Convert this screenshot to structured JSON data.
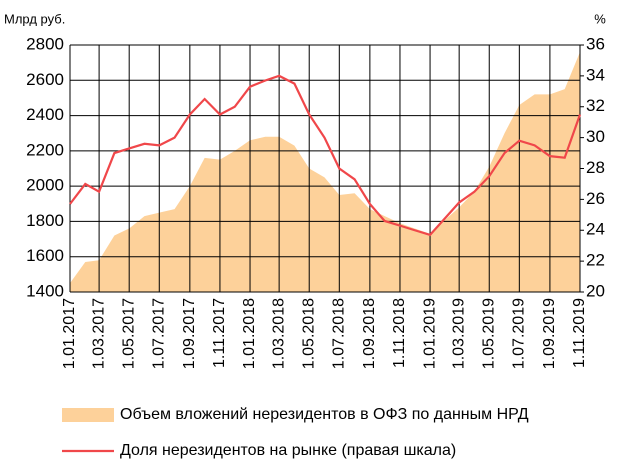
{
  "chart_data": {
    "type": "area",
    "y_axis_label": "Млрд руб.",
    "y2_axis_label": "%",
    "x": [
      "2017-01-01",
      "2017-02-01",
      "2017-03-01",
      "2017-04-01",
      "2017-05-01",
      "2017-06-01",
      "2017-07-01",
      "2017-08-01",
      "2017-09-01",
      "2017-10-01",
      "2017-11-01",
      "2017-12-01",
      "2018-01-01",
      "2018-02-01",
      "2018-03-01",
      "2018-04-01",
      "2018-05-01",
      "2018-06-01",
      "2018-07-01",
      "2018-08-01",
      "2018-09-01",
      "2018-10-01",
      "2018-11-01",
      "2018-12-01",
      "2019-01-01",
      "2019-02-01",
      "2019-03-01",
      "2019-04-01",
      "2019-05-01",
      "2019-06-01",
      "2019-07-01",
      "2019-08-01",
      "2019-09-01",
      "2019-10-01",
      "2019-11-01"
    ],
    "xlim": [
      "2017-01-01",
      "2019-11-01"
    ],
    "xticks": [
      {
        "value": "2017-01-01",
        "label": "1.01.2017"
      },
      {
        "value": "2017-03-01",
        "label": "1.03.2017"
      },
      {
        "value": "2017-05-01",
        "label": "1.05.2017"
      },
      {
        "value": "2017-07-01",
        "label": "1.07.2017"
      },
      {
        "value": "2017-09-01",
        "label": "1.09.2017"
      },
      {
        "value": "2017-11-01",
        "label": "1.11.2017"
      },
      {
        "value": "2018-01-01",
        "label": "1.01.2018"
      },
      {
        "value": "2018-03-01",
        "label": "1.03.2018"
      },
      {
        "value": "2018-05-01",
        "label": "1.05.2018"
      },
      {
        "value": "2018-07-01",
        "label": "1.07.2018"
      },
      {
        "value": "2018-09-01",
        "label": "1.09.2018"
      },
      {
        "value": "2018-11-01",
        "label": "1.11.2018"
      },
      {
        "value": "2019-01-01",
        "label": "1.01.2019"
      },
      {
        "value": "2019-03-01",
        "label": "1.03.2019"
      },
      {
        "value": "2019-05-01",
        "label": "1.05.2019"
      },
      {
        "value": "2019-07-01",
        "label": "1.07.2019"
      },
      {
        "value": "2019-09-01",
        "label": "1.09.2019"
      },
      {
        "value": "2019-11-01",
        "label": "1.11.2019"
      }
    ],
    "ylim": [
      1400,
      2800
    ],
    "yticks": [
      1400,
      1600,
      1800,
      2000,
      2200,
      2400,
      2600,
      2800
    ],
    "y2lim": [
      20,
      36
    ],
    "y2ticks": [
      20,
      22,
      24,
      26,
      28,
      30,
      32,
      34,
      36
    ],
    "grid": true,
    "series": [
      {
        "name": "Объем вложений нерезидентов в ОФЗ по данным НРД",
        "type": "area",
        "color": "#fdd19a",
        "values": [
          1450,
          1570,
          1580,
          1720,
          1760,
          1830,
          1850,
          1870,
          2000,
          2160,
          2150,
          2200,
          2260,
          2280,
          2280,
          2230,
          2100,
          2050,
          1950,
          1960,
          1870,
          1830,
          1790,
          1760,
          1730,
          1810,
          1880,
          1970,
          2110,
          2300,
          2460,
          2520,
          2520,
          2550,
          2760
        ]
      },
      {
        "name": "Доля нерезидентов на рынке (правая шкала)",
        "type": "line",
        "axis": "y2",
        "color": "#f0474a",
        "values": [
          25.7,
          27.0,
          26.5,
          29.0,
          29.3,
          29.6,
          29.5,
          30.0,
          31.5,
          32.5,
          31.5,
          32.0,
          33.3,
          33.7,
          34.0,
          33.5,
          31.5,
          30.0,
          28.0,
          27.3,
          25.7,
          24.6,
          24.3,
          24.0,
          23.7,
          24.8,
          25.8,
          26.5,
          27.5,
          29.0,
          29.8,
          29.5,
          28.8,
          28.7,
          31.5
        ]
      }
    ]
  }
}
